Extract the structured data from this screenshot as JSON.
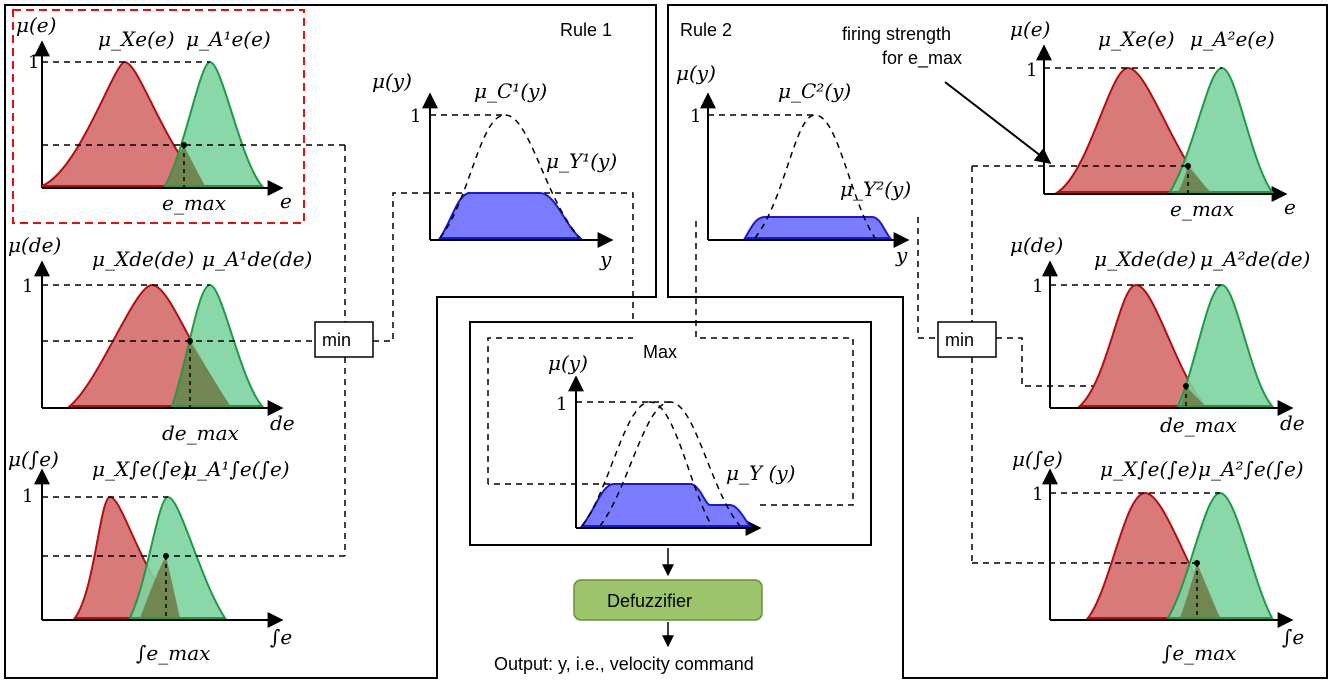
{
  "rule1": {
    "title": "Rule 1"
  },
  "rule2": {
    "title": "Rule 2"
  },
  "min_label": "min",
  "max_label": "Max",
  "defuzzifier": {
    "label": "Defuzzifier",
    "color": "#9cc46a",
    "border": "#6c8f3f"
  },
  "output_text": "Output: y, i.e., velocity command",
  "firing_strength": {
    "line1": "firing strength",
    "line2": "for e_max"
  },
  "tick_one": "1",
  "left_panels": {
    "e": {
      "mu_axis": "μ(e)",
      "mu_x": "μ_Xe(e)",
      "mu_a": "μ_A¹e(e)",
      "max_label": "e_max",
      "axis": "e"
    },
    "de": {
      "mu_axis": "μ(de)",
      "mu_x": "μ_Xde(de)",
      "mu_a": "μ_A¹de(de)",
      "max_label": "de_max",
      "axis": "de"
    },
    "ie": {
      "mu_axis": "μ(∫e)",
      "mu_x": "μ_X∫e(∫e)",
      "mu_a": "μ_A¹∫e(∫e)",
      "max_label": "∫e_max",
      "axis": "∫e"
    }
  },
  "right_panels": {
    "e": {
      "mu_axis": "μ(e)",
      "mu_x": "μ_Xe(e)",
      "mu_a": "μ_A²e(e)",
      "max_label": "e_max",
      "axis": "e"
    },
    "de": {
      "mu_axis": "μ(de)",
      "mu_x": "μ_Xde(de)",
      "mu_a": "μ_A²de(de)",
      "max_label": "de_max",
      "axis": "de"
    },
    "ie": {
      "mu_axis": "μ(∫e)",
      "mu_x": "μ_X∫e(∫e)",
      "mu_a": "μ_A²∫e(∫e)",
      "max_label": "∫e_max",
      "axis": "∫e"
    }
  },
  "consequent1": {
    "mu_axis": "μ(y)",
    "mu_c": "μ_C¹(y)",
    "mu_y": "μ_Y¹(y)",
    "axis": "y"
  },
  "consequent2": {
    "mu_axis": "μ(y)",
    "mu_c": "μ_C²(y)",
    "mu_y": "μ_Y²(y)",
    "axis": "y"
  },
  "aggregate": {
    "mu_axis": "μ(y)",
    "mu_y": "μ_Y (y)"
  },
  "colors": {
    "red_fill": "#d97a7a",
    "red_line": "#b01010",
    "green_fill": "#7dd4a0",
    "green_line": "#1f9a45",
    "overlap_fill": "#6f7a45",
    "blue_fill": "#7b7bff",
    "blue_line": "#1a1ad0",
    "highlight_box": "#e01010"
  }
}
